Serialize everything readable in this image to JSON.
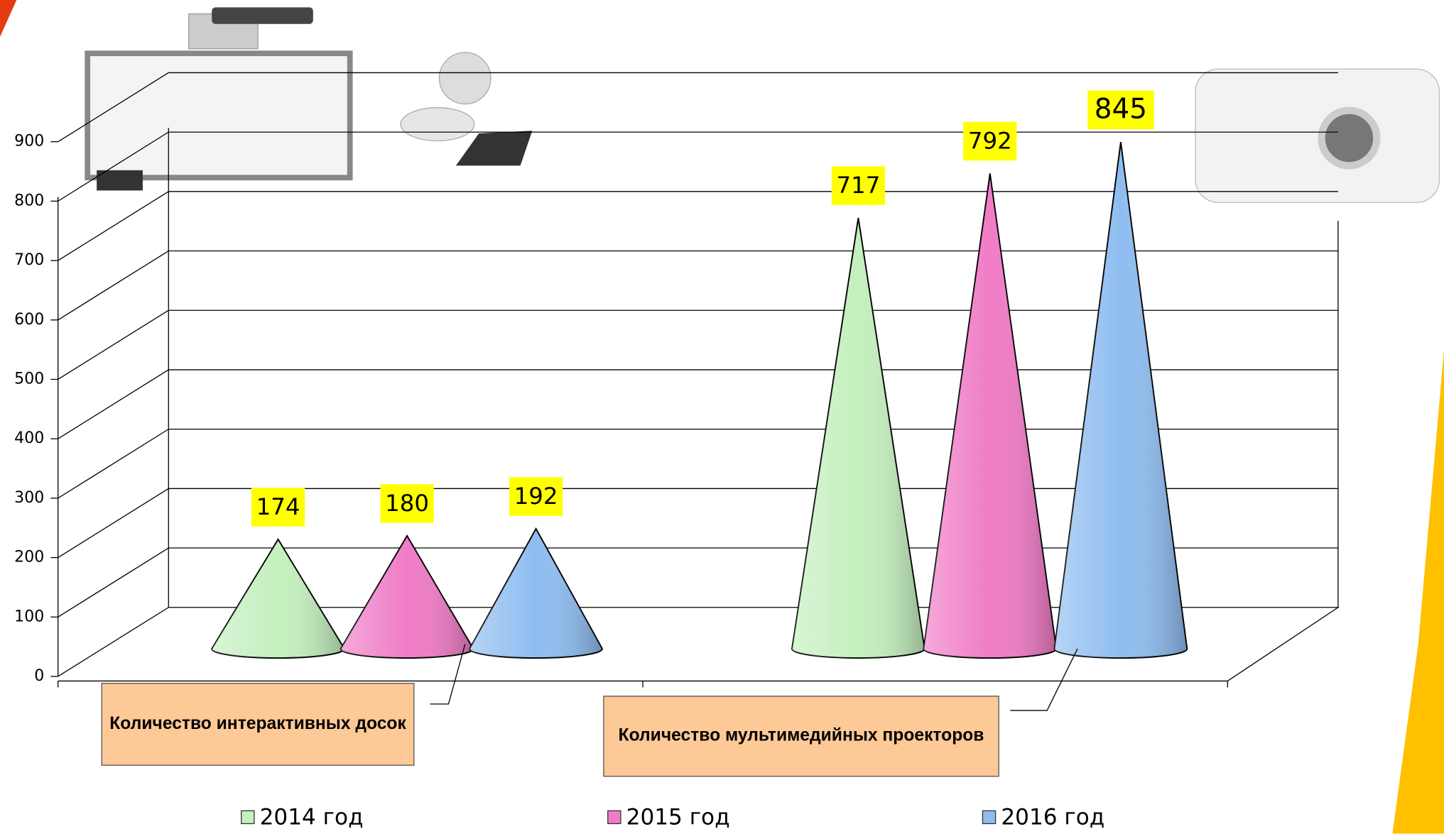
{
  "chart_data": {
    "type": "bar",
    "subtype": "cone-3d",
    "categories": [
      "Количество интерактивных досок",
      "Количество мультимедийных проекторов"
    ],
    "series": [
      {
        "name": "2014 год",
        "color": "#c4efbe",
        "values": [
          174,
          717
        ]
      },
      {
        "name": "2015 год",
        "color": "#f07cc6",
        "values": [
          180,
          792
        ]
      },
      {
        "name": "2016 год",
        "color": "#8fbdf0",
        "values": [
          192,
          845
        ]
      }
    ],
    "ylim": [
      0,
      900
    ],
    "yticks": [
      0,
      100,
      200,
      300,
      400,
      500,
      600,
      700,
      800,
      900
    ],
    "grid": true,
    "legend": "bottom"
  }
}
